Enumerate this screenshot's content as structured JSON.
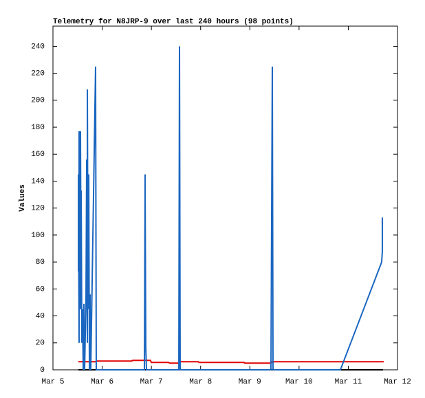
{
  "chart_data": {
    "type": "line",
    "title": "Telemetry for N8JRP-9 over last 240 hours (98 points)",
    "y_label": "Values",
    "xlim": [
      5,
      12
    ],
    "xticks": [
      {
        "value": 5,
        "label": "Mar 5"
      },
      {
        "value": 6,
        "label": "Mar 6"
      },
      {
        "value": 7,
        "label": "Mar 7"
      },
      {
        "value": 8,
        "label": "Mar 8"
      },
      {
        "value": 9,
        "label": "Mar 9"
      },
      {
        "value": 10,
        "label": "Mar 10"
      },
      {
        "value": 11,
        "label": "Mar 11"
      },
      {
        "value": 12,
        "label": "Mar 12"
      }
    ],
    "ylim": [
      0,
      255
    ],
    "yticks": [
      0,
      20,
      40,
      60,
      80,
      100,
      120,
      140,
      160,
      180,
      200,
      220,
      240
    ],
    "series": [
      {
        "color": "#000000",
        "x": [
          5.517,
          11.706
        ],
        "values": [
          0,
          0
        ]
      },
      {
        "color": "#e00000",
        "x": [
          5.517,
          5.866,
          5.88,
          6.6,
          6.62,
          6.98,
          7.0,
          7.35,
          7.37,
          7.55,
          7.57,
          7.95,
          7.97,
          8.88,
          8.9,
          9.43,
          9.45,
          11.72
        ],
        "values": [
          6,
          6,
          6.5,
          6.5,
          7,
          7,
          5.5,
          5.5,
          5,
          5,
          6,
          6,
          5.5,
          5.5,
          5,
          5,
          6,
          6
        ]
      },
      {
        "color": "#1a66c0",
        "x": [
          5.517,
          5.517,
          5.531,
          5.531,
          5.545,
          5.559,
          5.573,
          5.573,
          5.587,
          5.601,
          5.615,
          5.629,
          5.643,
          5.671,
          5.685,
          5.699,
          5.699,
          5.713,
          5.727,
          5.741,
          5.755,
          5.768,
          5.866,
          5.88,
          6.858,
          6.872,
          6.886,
          6.9,
          7.557,
          7.571,
          7.585,
          9.429,
          9.443,
          9.457,
          9.471,
          10.84,
          11.679,
          11.692,
          11.692
        ],
        "values": [
          73,
          145,
          20,
          177,
          45,
          177,
          45,
          133,
          20,
          45,
          0,
          49,
          0,
          52,
          156,
          20,
          208,
          45,
          145,
          0,
          56,
          0,
          225,
          0,
          0,
          145,
          17,
          0,
          0,
          240,
          0,
          0,
          113,
          225,
          0,
          0,
          80,
          88,
          113
        ]
      }
    ]
  }
}
